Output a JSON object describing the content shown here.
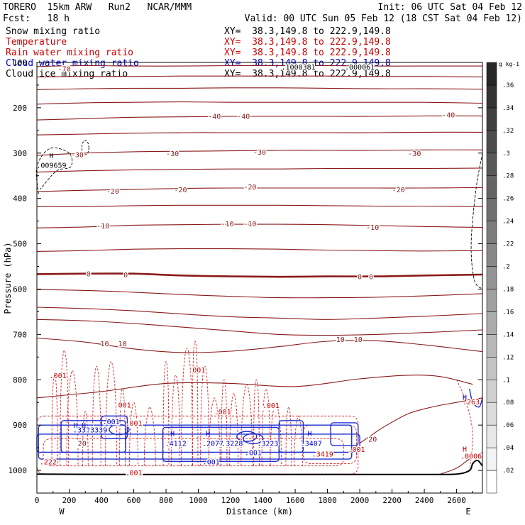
{
  "header": {
    "model_name": "TORERO  15km ARW   Run2   NCAR/MMM",
    "init_time": "Init: 06 UTC Sat 04 Feb 12",
    "forecast": "Fcst:   18 h",
    "valid_time": "Valid: 00 UTC Sun 05 Feb 12 (18 CST Sat 04 Feb 12)"
  },
  "legend": [
    {
      "field": "Snow mixing ratio",
      "cross_section": "XY=  38.3,149.8 to 222.9,149.8",
      "color": "#000000"
    },
    {
      "field": "Temperature",
      "cross_section": "XY=  38.3,149.8 to 222.9,149.8",
      "color": "#cc0000"
    },
    {
      "field": "Rain water mixing ratio",
      "cross_section": "XY=  38.3,149.8 to 222.9,149.8",
      "color": "#cc0000"
    },
    {
      "field": "Cloud water mixing ratio",
      "cross_section": "XY=  38.3,149.8 to 222.9,149.8",
      "color": "#0000cc"
    },
    {
      "field": "Cloud ice mixing ratio",
      "cross_section": "XY=  38.3,149.8 to 222.9,149.8",
      "color": "#000000"
    }
  ],
  "chart_data": {
    "type": "contour",
    "xlabel": "Distance (km)",
    "ylabel": "Pressure (hPa)",
    "xlim": [
      0,
      2760
    ],
    "ylim": [
      1050,
      100
    ],
    "x_ticks": [
      0,
      200,
      400,
      600,
      800,
      1000,
      1200,
      1400,
      1600,
      1800,
      2000,
      2200,
      2400,
      2600
    ],
    "y_ticks": [
      100,
      200,
      300,
      400,
      500,
      600,
      700,
      800,
      900,
      1000
    ],
    "endpoints": {
      "left": "W",
      "right": "E"
    },
    "colorbar": {
      "unit": "g kg-1",
      "tick_labels": [
        ".02",
        ".04",
        ".06",
        ".08",
        ".1",
        ".12",
        ".14",
        ".16",
        ".18",
        ".2",
        ".22",
        ".24",
        ".26",
        ".28",
        ".3",
        ".32",
        ".34",
        ".36"
      ],
      "max": 0.38
    },
    "temperature_contours": [
      {
        "x": [
          0,
          300,
          600,
          900,
          1200,
          1500,
          1800,
          2100,
          2400,
          2760
        ],
        "p": [
          109,
          107,
          108,
          108,
          107,
          107,
          107,
          108,
          108,
          108
        ],
        "label": "-70"
      },
      {
        "x": [
          0,
          300,
          600,
          900,
          1200,
          1500,
          1800,
          2100,
          2400,
          2760
        ],
        "p": [
          132,
          131,
          131,
          130,
          130,
          130,
          130,
          131,
          131,
          132
        ]
      },
      {
        "x": [
          0,
          300,
          600,
          900,
          1200,
          1500,
          1800,
          2100,
          2400,
          2760
        ],
        "p": [
          160,
          158,
          157,
          157,
          156,
          156,
          157,
          158,
          158,
          159
        ]
      },
      {
        "x": [
          0,
          300,
          600,
          900,
          1200,
          1500,
          1800,
          2100,
          2400,
          2760
        ],
        "p": [
          192,
          189,
          188,
          187,
          188,
          188,
          188,
          188,
          188,
          190
        ]
      },
      {
        "x": [
          0,
          300,
          600,
          900,
          1200,
          1500,
          1800,
          2100,
          2400,
          2760
        ],
        "p": [
          227,
          224,
          221,
          220,
          219,
          219,
          219,
          219,
          218,
          218
        ],
        "label": "-40"
      },
      {
        "x": [
          0,
          300,
          600,
          900,
          1200,
          1500,
          1800,
          2100,
          2400,
          2760
        ],
        "p": [
          260,
          258,
          256,
          255,
          255,
          255,
          255,
          255,
          254,
          254
        ]
      },
      {
        "x": [
          0,
          300,
          600,
          900,
          1200,
          1500,
          1800,
          2100,
          2400,
          2760
        ],
        "p": [
          305,
          300,
          297,
          296,
          295,
          294,
          294,
          294,
          293,
          293
        ],
        "label": "-30"
      },
      {
        "x": [
          0,
          300,
          600,
          900,
          1200,
          1500,
          1800,
          2100,
          2400,
          2760
        ],
        "p": [
          342,
          339,
          337,
          336,
          335,
          335,
          334,
          334,
          334,
          333
        ]
      },
      {
        "x": [
          0,
          300,
          600,
          900,
          1200,
          1500,
          1800,
          2100,
          2400,
          2760
        ],
        "p": [
          385,
          382,
          380,
          378,
          377,
          377,
          377,
          377,
          377,
          376
        ],
        "label": "-20"
      },
      {
        "x": [
          0,
          300,
          600,
          900,
          1200,
          1500,
          1800,
          2100,
          2400,
          2760
        ],
        "p": [
          418,
          418,
          416,
          415,
          415,
          415,
          416,
          417,
          417,
          418
        ]
      },
      {
        "x": [
          0,
          300,
          600,
          900,
          1200,
          1500,
          1800,
          2100,
          2400,
          2760
        ],
        "p": [
          465,
          463,
          459,
          458,
          457,
          457,
          458,
          460,
          462,
          464
        ],
        "label": "-10"
      },
      {
        "x": [
          0,
          300,
          600,
          900,
          1200,
          1500,
          1800,
          2100,
          2400,
          2760
        ],
        "p": [
          517,
          515,
          512,
          511,
          511,
          512,
          514,
          515,
          516,
          515
        ]
      },
      {
        "x": [
          0,
          300,
          600,
          900,
          1200,
          1500,
          1800,
          2100,
          2400,
          2760
        ],
        "p": [
          567,
          566,
          566,
          570,
          572,
          573,
          572,
          572,
          570,
          568
        ],
        "label": "0",
        "bold": true
      },
      {
        "x": [
          0,
          300,
          600,
          900,
          1200,
          1500,
          1800,
          2100,
          2400,
          2760
        ],
        "p": [
          601,
          603,
          607,
          612,
          616,
          619,
          619,
          618,
          615,
          610
        ]
      },
      {
        "x": [
          0,
          300,
          600,
          900,
          1200,
          1500,
          1800,
          2100,
          2400,
          2760
        ],
        "p": [
          640,
          643,
          648,
          655,
          661,
          664,
          667,
          664,
          660,
          654
        ]
      },
      {
        "x": [
          0,
          300,
          600,
          900,
          1200,
          1500,
          1800,
          2100,
          2400,
          2760
        ],
        "p": [
          667,
          670,
          676,
          684,
          692,
          700,
          702,
          700,
          696,
          690
        ]
      },
      {
        "x": [
          0,
          300,
          600,
          900,
          1200,
          1500,
          1800,
          2100,
          2400,
          2760
        ],
        "p": [
          708,
          717,
          732,
          740,
          737,
          727,
          715,
          714,
          723,
          738
        ],
        "label": "10"
      },
      {
        "x": [
          0,
          400,
          800,
          1200,
          1600,
          2000,
          2300,
          2500,
          2700
        ],
        "p": [
          840,
          826,
          808,
          808,
          815,
          798,
          790,
          793,
          810
        ]
      },
      {
        "x": [
          2000,
          2150,
          2300,
          2450,
          2600,
          2760
        ],
        "p": [
          940,
          904,
          875,
          860,
          850,
          840
        ],
        "label": "20"
      },
      {
        "x": [
          2500,
          2600,
          2680,
          2760
        ],
        "p": [
          1008,
          995,
          975,
          960
        ]
      }
    ],
    "temperature_labels": [
      {
        "x": 170,
        "p": 113,
        "text": "-70"
      },
      {
        "x": 1100,
        "p": 218,
        "text": "-40"
      },
      {
        "x": 1280,
        "p": 218,
        "text": "-40"
      },
      {
        "x": 2550,
        "p": 215,
        "text": "-40"
      },
      {
        "x": 250,
        "p": 303,
        "text": "-30"
      },
      {
        "x": 840,
        "p": 300,
        "text": "-30"
      },
      {
        "x": 1380,
        "p": 297,
        "text": "-30"
      },
      {
        "x": 2340,
        "p": 300,
        "text": "-30"
      },
      {
        "x": 470,
        "p": 383,
        "text": "-20"
      },
      {
        "x": 890,
        "p": 380,
        "text": "-20"
      },
      {
        "x": 1320,
        "p": 374,
        "text": "-20"
      },
      {
        "x": 2240,
        "p": 380,
        "text": "-20"
      },
      {
        "x": 410,
        "p": 460,
        "text": "-10"
      },
      {
        "x": 1180,
        "p": 455,
        "text": "-10"
      },
      {
        "x": 1320,
        "p": 455,
        "text": "-10"
      },
      {
        "x": 2080,
        "p": 463,
        "text": "-10"
      },
      {
        "x": 320,
        "p": 566,
        "text": "0"
      },
      {
        "x": 550,
        "p": 568,
        "text": "0"
      },
      {
        "x": 2000,
        "p": 572,
        "text": "0"
      },
      {
        "x": 2070,
        "p": 572,
        "text": "0"
      },
      {
        "x": 420,
        "p": 720,
        "text": "10"
      },
      {
        "x": 530,
        "p": 720,
        "text": "10"
      },
      {
        "x": 1880,
        "p": 710,
        "text": "10"
      },
      {
        "x": 1990,
        "p": 710,
        "text": "10"
      },
      {
        "x": 2080,
        "p": 930,
        "text": "20"
      },
      {
        "x": 280,
        "p": 940,
        "text": "20"
      }
    ],
    "rain_water_labels": [
      {
        "x": 130,
        "p": 790,
        "text": ".001"
      },
      {
        "x": 530,
        "p": 855,
        "text": ".001"
      },
      {
        "x": 990,
        "p": 778,
        "text": ".001"
      },
      {
        "x": 1150,
        "p": 870,
        "text": ".001"
      },
      {
        "x": 1450,
        "p": 856,
        "text": ".001"
      },
      {
        "x": 600,
        "p": 895,
        "text": ".001"
      },
      {
        "x": 1980,
        "p": 953,
        "text": ".001"
      },
      {
        "x": 600,
        "p": 1005,
        "text": ".001"
      },
      {
        "x": 70,
        "p": 980,
        "text": ".222"
      },
      {
        "x": 1770,
        "p": 963,
        "text": ".3419"
      },
      {
        "x": 2690,
        "p": 968,
        "text": ".0006"
      },
      {
        "x": 2690,
        "p": 848,
        "text": ".263"
      }
    ],
    "cloud_water_labels": [
      {
        "x": 290,
        "p": 910,
        "text": ".3324"
      },
      {
        "x": 370,
        "p": 910,
        "text": ".3339"
      },
      {
        "x": 860,
        "p": 940,
        "text": ".4112"
      },
      {
        "x": 1090,
        "p": 940,
        "text": ".2077"
      },
      {
        "x": 1210,
        "p": 940,
        "text": ".3228"
      },
      {
        "x": 1430,
        "p": 940,
        "text": ".3223"
      },
      {
        "x": 1700,
        "p": 940,
        "text": ".3407"
      },
      {
        "x": 1340,
        "p": 960,
        "text": ".001"
      },
      {
        "x": 1080,
        "p": 980,
        "text": ".001"
      },
      {
        "x": 460,
        "p": 892,
        "text": ".001"
      }
    ],
    "cloud_ice_labels": [
      {
        "x": 90,
        "p": 326,
        "text": ".009659"
      },
      {
        "x": 1620,
        "p": 109,
        "text": ".1000381"
      },
      {
        "x": 2000,
        "p": 109,
        "text": ".000061"
      }
    ],
    "h_markers": [
      {
        "x": 90,
        "p": 305,
        "color": "#000000"
      },
      {
        "x": 240,
        "p": 900,
        "color": "#0000cc"
      },
      {
        "x": 290,
        "p": 900,
        "color": "#0000cc"
      },
      {
        "x": 840,
        "p": 918,
        "color": "#0000cc"
      },
      {
        "x": 1060,
        "p": 918,
        "color": "#0000cc"
      },
      {
        "x": 1690,
        "p": 918,
        "color": "#0000cc"
      },
      {
        "x": 2650,
        "p": 838,
        "color": "#0000cc"
      },
      {
        "x": 2650,
        "p": 952,
        "color": "#cc0000"
      }
    ],
    "terrain": {
      "x": [
        0,
        500,
        1000,
        1500,
        2000,
        2400,
        2600,
        2680,
        2700,
        2730,
        2760
      ],
      "p": [
        1008,
        1009,
        1009,
        1009,
        1009,
        1009,
        1008,
        1000,
        985,
        978,
        990
      ]
    }
  }
}
